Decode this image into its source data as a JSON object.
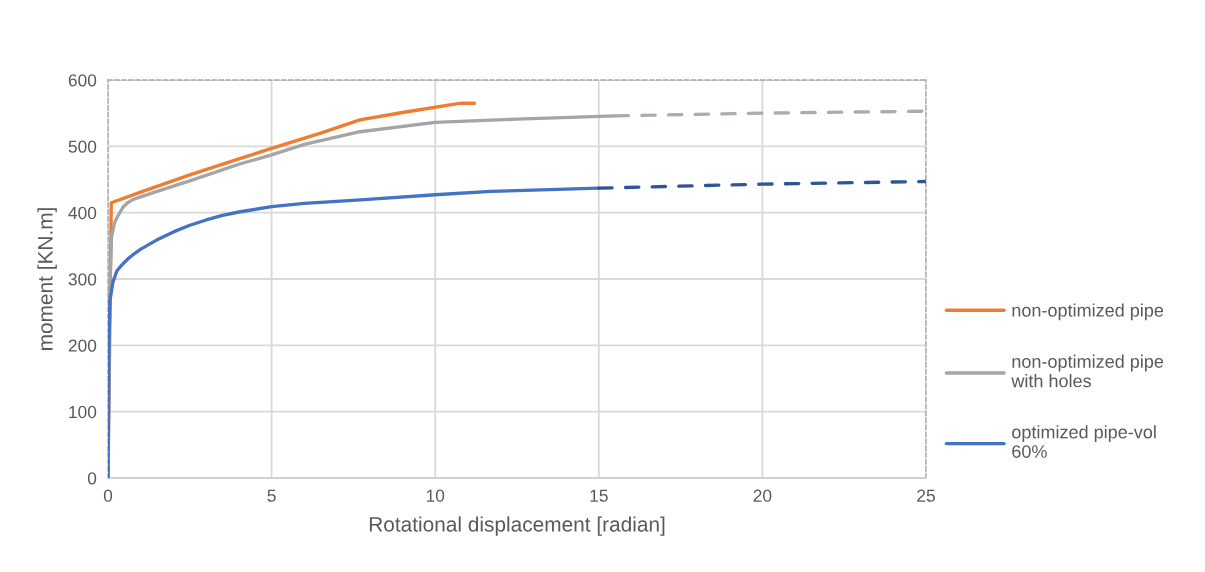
{
  "chart_data": {
    "type": "line",
    "xlabel": "Rotational displacement [radian]",
    "ylabel": "moment [KN.m]",
    "xlim": [
      0,
      25
    ],
    "ylim": [
      0,
      600
    ],
    "xticks": [
      0,
      5,
      10,
      15,
      20,
      25
    ],
    "yticks": [
      0,
      100,
      200,
      300,
      400,
      500,
      600
    ],
    "grid": true,
    "legend": "right",
    "series": [
      {
        "name": "non-optimized pipe",
        "color": "#ed7d31",
        "x": [
          0,
          0.05,
          0.1,
          1,
          2.5,
          4,
          5,
          6.5,
          7.7,
          9,
          10.5,
          10.8,
          11.2
        ],
        "values": [
          0,
          200,
          415,
          431,
          457,
          481,
          497,
          520,
          540,
          551,
          563,
          565,
          565
        ]
      },
      {
        "name": "non-optimized pipe with holes",
        "color": "#a5a5a5",
        "x": [
          0,
          0.05,
          0.11,
          0.2,
          0.3,
          0.47,
          0.6,
          0.77,
          1.5,
          2.5,
          4,
          5,
          6,
          7.7,
          10,
          12.5,
          15.5
        ],
        "values": [
          0,
          280,
          364,
          385,
          395,
          409,
          415,
          420,
          432,
          448,
          473,
          487,
          503,
          522,
          536,
          541,
          546
        ]
      },
      {
        "name": "optimized pipe-vol 60%",
        "color": "#4472c4",
        "x": [
          0,
          0.03,
          0.06,
          0.1,
          0.15,
          0.27,
          0.4,
          0.6,
          0.8,
          1,
          1.5,
          2,
          2.5,
          3,
          3.5,
          4,
          5,
          6,
          7.6,
          8.5,
          10,
          11.7,
          15
        ],
        "values": [
          0,
          200,
          268,
          280,
          295,
          312,
          320,
          330,
          338,
          345,
          359,
          371,
          381,
          389,
          396,
          401,
          409,
          414,
          419,
          422,
          427,
          432,
          437
        ]
      },
      {
        "color": "#afabab",
        "line_style": "dashed",
        "x": [
          15.5,
          20,
          25
        ],
        "values": [
          546,
          550,
          553
        ]
      },
      {
        "color": "#2f5597",
        "line_style": "dashed",
        "x": [
          15,
          20,
          25
        ],
        "values": [
          437,
          443,
          447
        ]
      }
    ]
  }
}
